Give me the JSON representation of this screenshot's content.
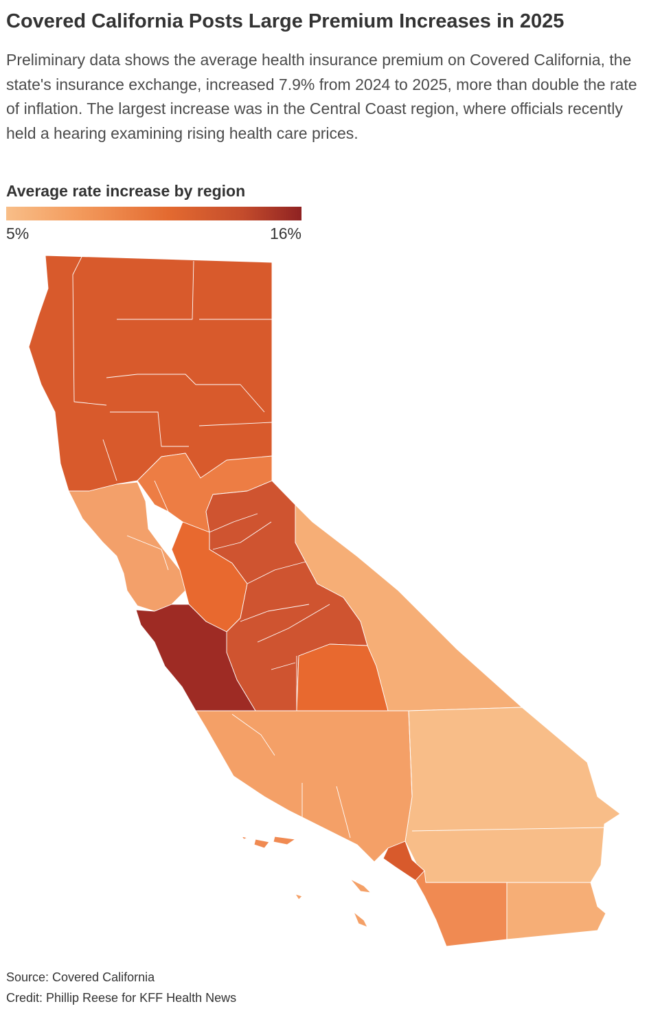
{
  "title": "Covered California Posts Large Premium Increases in 2025",
  "subtitle": "Preliminary data shows the average health insurance premium on Covered California, the state's insurance exchange, increased 7.9% from 2024 to 2025, more than double the rate of inflation. The largest increase was in the Central Coast region, where officials recently held a hearing examining rising health care prices.",
  "legend": {
    "title": "Average rate increase by region",
    "min_label": "5%",
    "max_label": "16%",
    "min_value": 5,
    "max_value": 16,
    "color_low": "#f8be88",
    "color_high": "#8f2222"
  },
  "colors": {
    "northern": "#d85a2c",
    "bay_light": "#f3a06a",
    "orange_mid": "#ed7d44",
    "central_valley": "#e8692f",
    "central_dark": "#cf5430",
    "central_coast": "#9e2b24",
    "east_light": "#f6ae76",
    "inland_lightest": "#f8bd88",
    "la_region": "#f4a067",
    "orange_county": "#d85a2c",
    "san_diego": "#f08a52",
    "border": "#ffffff"
  },
  "source": "Source: Covered California",
  "credit": "Credit: Phillip Reese for KFF Health News"
}
